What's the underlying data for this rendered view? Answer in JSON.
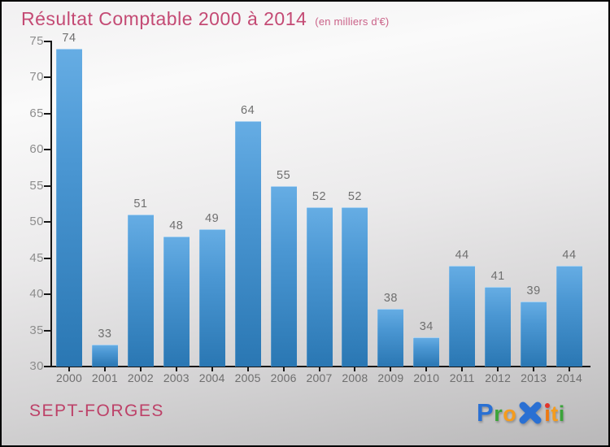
{
  "title": {
    "text": "Résultat Comptable 2000 à 2014",
    "subtitle": "(en milliers d'€)",
    "color": "#c44a74"
  },
  "footer": {
    "entity": "SEPT-FORGES"
  },
  "logo": {
    "name": "Proxiti",
    "letters": [
      {
        "ch": "P",
        "color": "#2a70d3",
        "cap": true
      },
      {
        "ch": "r",
        "color": "#3ba43a"
      },
      {
        "ch": "o",
        "color": "#f59c1d"
      },
      {
        "ch": "X",
        "color": "#2a70d3",
        "glyph": "x-mark"
      },
      {
        "ch": "i",
        "color": "#f0790f",
        "dot": "#e3342a"
      },
      {
        "ch": "t",
        "color": "#f59c1d"
      },
      {
        "ch": "i",
        "color": "#3ba43a"
      }
    ]
  },
  "chart_data": {
    "type": "bar",
    "title": "Résultat Comptable 2000 à 2014",
    "unit_note": "(en milliers d'€)",
    "categories": [
      "2000",
      "2001",
      "2002",
      "2003",
      "2004",
      "2005",
      "2006",
      "2007",
      "2008",
      "2009",
      "2010",
      "2011",
      "2012",
      "2013",
      "2014"
    ],
    "values": [
      74,
      33,
      51,
      48,
      49,
      64,
      55,
      52,
      52,
      38,
      34,
      44,
      41,
      39,
      44
    ],
    "xlabel": "",
    "ylabel": "",
    "ylim": [
      30,
      75
    ],
    "ytick_step": 5,
    "grid": false,
    "legend": false,
    "value_labels": true,
    "bar_color_top": "#66ade4",
    "bar_color_bottom": "#2a77b3",
    "axis_color": "#161616",
    "tick_label_color": "#8d8d8d",
    "value_label_color": "#6f6f6f"
  }
}
